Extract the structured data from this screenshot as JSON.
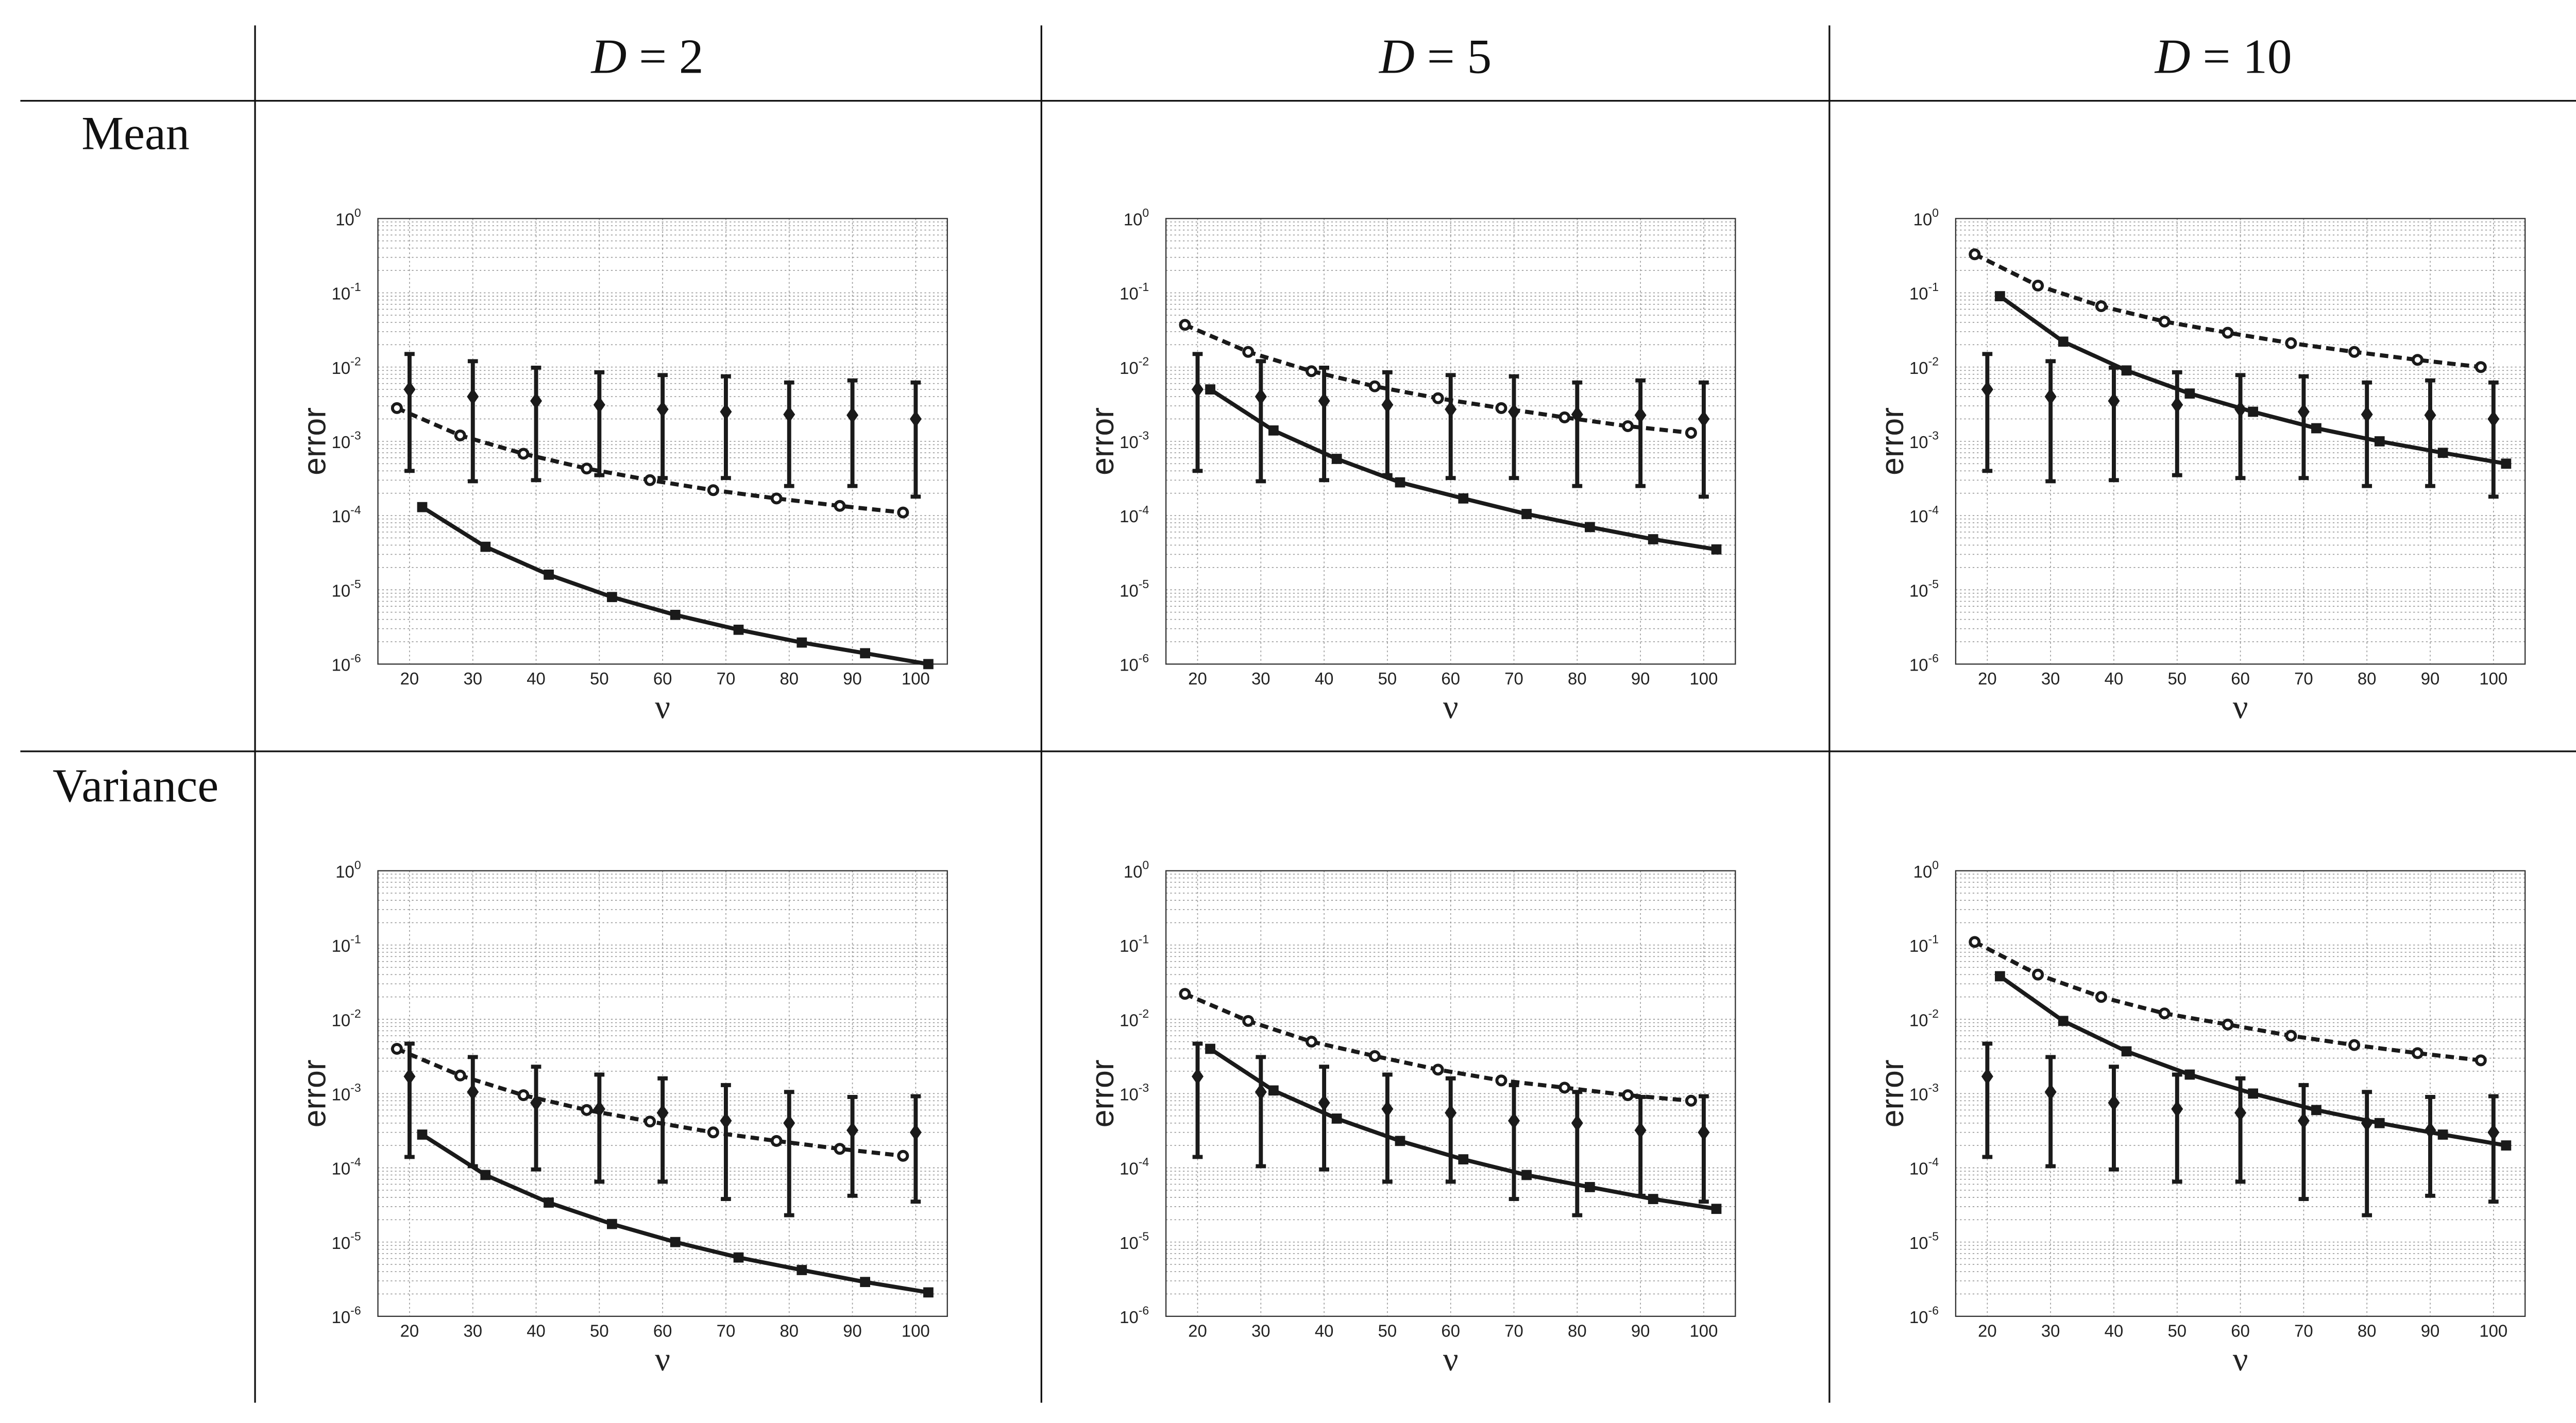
{
  "columns": [
    {
      "var": "D",
      "eq": " = ",
      "val": "2"
    },
    {
      "var": "D",
      "eq": " = ",
      "val": "5"
    },
    {
      "var": "D",
      "eq": " = ",
      "val": "10"
    }
  ],
  "rows": [
    "Mean",
    "Variance"
  ],
  "chart_data": [
    {
      "type": "line",
      "row": "Mean",
      "column": "D = 2",
      "xlabel": "ν",
      "ylabel": "error",
      "yscale": "log",
      "ylim": [
        1e-06,
        1
      ],
      "xlim": [
        15,
        105
      ],
      "xticks": [
        20,
        30,
        40,
        50,
        60,
        70,
        80,
        90,
        100
      ],
      "yticks": [
        "10^-6",
        "10^-5",
        "10^-4",
        "10^-3",
        "10^-2",
        "10^-1",
        "10^0"
      ],
      "grid": true,
      "series": [
        {
          "name": "circles-dashed",
          "style": "dashed",
          "marker": "circle",
          "x": [
            18,
            28,
            38,
            48,
            58,
            68,
            78,
            88,
            98
          ],
          "values": [
            0.0028,
            0.0012,
            0.00068,
            0.00043,
            0.0003,
            0.00022,
            0.00017,
            0.000135,
            0.00011
          ]
        },
        {
          "name": "squares-solid",
          "style": "solid",
          "marker": "square",
          "x": [
            22,
            32,
            42,
            52,
            62,
            72,
            82,
            92,
            102
          ],
          "values": [
            0.00013,
            3.8e-05,
            1.6e-05,
            8e-06,
            4.6e-06,
            2.9e-06,
            1.95e-06,
            1.4e-06,
            1e-06
          ]
        },
        {
          "name": "diamonds-errorbar",
          "style": "none",
          "marker": "diamond",
          "x": [
            20,
            30,
            40,
            50,
            60,
            70,
            80,
            90,
            100
          ],
          "values": [
            0.005,
            0.004,
            0.0035,
            0.0031,
            0.0027,
            0.0025,
            0.0023,
            0.00225,
            0.002
          ],
          "lower": [
            0.0004,
            0.00029,
            0.0003,
            0.00035,
            0.00032,
            0.00032,
            0.00025,
            0.00025,
            0.00018
          ],
          "upper": [
            0.015,
            0.012,
            0.0098,
            0.0085,
            0.0078,
            0.0075,
            0.0062,
            0.0066,
            0.0062
          ]
        }
      ]
    },
    {
      "type": "line",
      "row": "Mean",
      "column": "D = 5",
      "xlabel": "ν",
      "ylabel": "error",
      "yscale": "log",
      "ylim": [
        1e-06,
        1
      ],
      "xlim": [
        15,
        105
      ],
      "xticks": [
        20,
        30,
        40,
        50,
        60,
        70,
        80,
        90,
        100
      ],
      "yticks": [
        "10^-6",
        "10^-5",
        "10^-4",
        "10^-3",
        "10^-2",
        "10^-1",
        "10^0"
      ],
      "grid": true,
      "series": [
        {
          "name": "circles-dashed",
          "style": "dashed",
          "marker": "circle",
          "x": [
            18,
            28,
            38,
            48,
            58,
            68,
            78,
            88,
            98
          ],
          "values": [
            0.037,
            0.016,
            0.0088,
            0.0055,
            0.0038,
            0.0028,
            0.0021,
            0.0016,
            0.0013
          ]
        },
        {
          "name": "squares-solid",
          "style": "solid",
          "marker": "square",
          "x": [
            22,
            32,
            42,
            52,
            62,
            72,
            82,
            92,
            102
          ],
          "values": [
            0.005,
            0.0014,
            0.00058,
            0.00028,
            0.00017,
            0.000105,
            7e-05,
            4.8e-05,
            3.5e-05
          ]
        },
        {
          "name": "diamonds-errorbar",
          "style": "none",
          "marker": "diamond",
          "x": [
            20,
            30,
            40,
            50,
            60,
            70,
            80,
            90,
            100
          ],
          "values": [
            0.005,
            0.004,
            0.0035,
            0.0031,
            0.0027,
            0.0025,
            0.0023,
            0.00225,
            0.002
          ],
          "lower": [
            0.0004,
            0.00029,
            0.0003,
            0.00035,
            0.00032,
            0.00032,
            0.00025,
            0.00025,
            0.00018
          ],
          "upper": [
            0.015,
            0.012,
            0.0098,
            0.0085,
            0.0078,
            0.0075,
            0.0062,
            0.0066,
            0.0062
          ]
        }
      ]
    },
    {
      "type": "line",
      "row": "Mean",
      "column": "D = 10",
      "xlabel": "ν",
      "ylabel": "error",
      "yscale": "log",
      "ylim": [
        1e-06,
        1
      ],
      "xlim": [
        15,
        105
      ],
      "xticks": [
        20,
        30,
        40,
        50,
        60,
        70,
        80,
        90,
        100
      ],
      "yticks": [
        "10^-6",
        "10^-5",
        "10^-4",
        "10^-3",
        "10^-2",
        "10^-1",
        "10^0"
      ],
      "grid": true,
      "series": [
        {
          "name": "circles-dashed",
          "style": "dashed",
          "marker": "circle",
          "x": [
            18,
            28,
            38,
            48,
            58,
            68,
            78,
            88,
            98
          ],
          "values": [
            0.33,
            0.125,
            0.066,
            0.041,
            0.029,
            0.021,
            0.016,
            0.0125,
            0.01
          ]
        },
        {
          "name": "squares-solid",
          "style": "solid",
          "marker": "square",
          "x": [
            22,
            32,
            42,
            52,
            62,
            72,
            82,
            92,
            102
          ],
          "values": [
            0.09,
            0.022,
            0.009,
            0.0044,
            0.0025,
            0.0015,
            0.001,
            0.0007,
            0.0005
          ]
        },
        {
          "name": "diamonds-errorbar",
          "style": "none",
          "marker": "diamond",
          "x": [
            20,
            30,
            40,
            50,
            60,
            70,
            80,
            90,
            100
          ],
          "values": [
            0.005,
            0.004,
            0.0035,
            0.0031,
            0.0027,
            0.0025,
            0.0023,
            0.00225,
            0.002
          ],
          "lower": [
            0.0004,
            0.00029,
            0.0003,
            0.00035,
            0.00032,
            0.00032,
            0.00025,
            0.00025,
            0.00018
          ],
          "upper": [
            0.015,
            0.012,
            0.0098,
            0.0085,
            0.0078,
            0.0075,
            0.0062,
            0.0066,
            0.0062
          ]
        }
      ]
    },
    {
      "type": "line",
      "row": "Variance",
      "column": "D = 2",
      "xlabel": "ν",
      "ylabel": "error",
      "yscale": "log",
      "ylim": [
        1e-06,
        1
      ],
      "xlim": [
        15,
        105
      ],
      "xticks": [
        20,
        30,
        40,
        50,
        60,
        70,
        80,
        90,
        100
      ],
      "yticks": [
        "10^-6",
        "10^-5",
        "10^-4",
        "10^-3",
        "10^-2",
        "10^-1",
        "10^0"
      ],
      "grid": true,
      "series": [
        {
          "name": "circles-dashed",
          "style": "dashed",
          "marker": "circle",
          "x": [
            18,
            28,
            38,
            48,
            58,
            68,
            78,
            88,
            98
          ],
          "values": [
            0.004,
            0.00175,
            0.00095,
            0.0006,
            0.00042,
            0.0003,
            0.00023,
            0.00018,
            0.000145
          ]
        },
        {
          "name": "squares-solid",
          "style": "solid",
          "marker": "square",
          "x": [
            22,
            32,
            42,
            52,
            62,
            72,
            82,
            92,
            102
          ],
          "values": [
            0.00028,
            8e-05,
            3.4e-05,
            1.75e-05,
            1e-05,
            6.2e-06,
            4.2e-06,
            2.9e-06,
            2.1e-06
          ]
        },
        {
          "name": "diamonds-errorbar",
          "style": "none",
          "marker": "diamond",
          "x": [
            20,
            30,
            40,
            50,
            60,
            70,
            80,
            90,
            100
          ],
          "values": [
            0.0017,
            0.00105,
            0.00075,
            0.00062,
            0.00055,
            0.00043,
            0.0004,
            0.00032,
            0.0003
          ],
          "lower": [
            0.00014,
            0.000105,
            9.5e-05,
            6.5e-05,
            6.5e-05,
            3.8e-05,
            2.3e-05,
            4.2e-05,
            3.5e-05
          ],
          "upper": [
            0.0047,
            0.0031,
            0.0023,
            0.0018,
            0.0016,
            0.0013,
            0.00105,
            0.0009,
            0.00092
          ]
        }
      ]
    },
    {
      "type": "line",
      "row": "Variance",
      "column": "D = 5",
      "xlabel": "ν",
      "ylabel": "error",
      "yscale": "log",
      "ylim": [
        1e-06,
        1
      ],
      "xlim": [
        15,
        105
      ],
      "xticks": [
        20,
        30,
        40,
        50,
        60,
        70,
        80,
        90,
        100
      ],
      "yticks": [
        "10^-6",
        "10^-5",
        "10^-4",
        "10^-3",
        "10^-2",
        "10^-1",
        "10^0"
      ],
      "grid": true,
      "series": [
        {
          "name": "circles-dashed",
          "style": "dashed",
          "marker": "circle",
          "x": [
            18,
            28,
            38,
            48,
            58,
            68,
            78,
            88,
            98
          ],
          "values": [
            0.022,
            0.0095,
            0.005,
            0.0032,
            0.0021,
            0.0015,
            0.0012,
            0.00095,
            0.0008
          ]
        },
        {
          "name": "squares-solid",
          "style": "solid",
          "marker": "square",
          "x": [
            22,
            32,
            42,
            52,
            62,
            72,
            82,
            92,
            102
          ],
          "values": [
            0.004,
            0.0011,
            0.00046,
            0.00023,
            0.00013,
            8e-05,
            5.5e-05,
            3.8e-05,
            2.8e-05
          ]
        },
        {
          "name": "diamonds-errorbar",
          "style": "none",
          "marker": "diamond",
          "x": [
            20,
            30,
            40,
            50,
            60,
            70,
            80,
            90,
            100
          ],
          "values": [
            0.0017,
            0.00105,
            0.00075,
            0.00062,
            0.00055,
            0.00043,
            0.0004,
            0.00032,
            0.0003
          ],
          "lower": [
            0.00014,
            0.000105,
            9.5e-05,
            6.5e-05,
            6.5e-05,
            3.8e-05,
            2.3e-05,
            4.2e-05,
            3.5e-05
          ],
          "upper": [
            0.0047,
            0.0031,
            0.0023,
            0.0018,
            0.0016,
            0.0013,
            0.00105,
            0.0009,
            0.00092
          ]
        }
      ]
    },
    {
      "type": "line",
      "row": "Variance",
      "column": "D = 10",
      "xlabel": "ν",
      "ylabel": "error",
      "yscale": "log",
      "ylim": [
        1e-06,
        1
      ],
      "xlim": [
        15,
        105
      ],
      "xticks": [
        20,
        30,
        40,
        50,
        60,
        70,
        80,
        90,
        100
      ],
      "yticks": [
        "10^-6",
        "10^-5",
        "10^-4",
        "10^-3",
        "10^-2",
        "10^-1",
        "10^0"
      ],
      "grid": true,
      "series": [
        {
          "name": "circles-dashed",
          "style": "dashed",
          "marker": "circle",
          "x": [
            18,
            28,
            38,
            48,
            58,
            68,
            78,
            88,
            98
          ],
          "values": [
            0.11,
            0.04,
            0.02,
            0.012,
            0.0085,
            0.006,
            0.0045,
            0.0035,
            0.0028
          ]
        },
        {
          "name": "squares-solid",
          "style": "solid",
          "marker": "square",
          "x": [
            22,
            32,
            42,
            52,
            62,
            72,
            82,
            92,
            102
          ],
          "values": [
            0.038,
            0.0095,
            0.0037,
            0.0018,
            0.001,
            0.0006,
            0.0004,
            0.00028,
            0.0002
          ]
        },
        {
          "name": "diamonds-errorbar",
          "style": "none",
          "marker": "diamond",
          "x": [
            20,
            30,
            40,
            50,
            60,
            70,
            80,
            90,
            100
          ],
          "values": [
            0.0017,
            0.00105,
            0.00075,
            0.00062,
            0.00055,
            0.00043,
            0.0004,
            0.00032,
            0.0003
          ],
          "lower": [
            0.00014,
            0.000105,
            9.5e-05,
            6.5e-05,
            6.5e-05,
            3.8e-05,
            2.3e-05,
            4.2e-05,
            3.5e-05
          ],
          "upper": [
            0.0047,
            0.0031,
            0.0023,
            0.0018,
            0.0016,
            0.0013,
            0.00105,
            0.0009,
            0.00092
          ]
        }
      ]
    }
  ]
}
